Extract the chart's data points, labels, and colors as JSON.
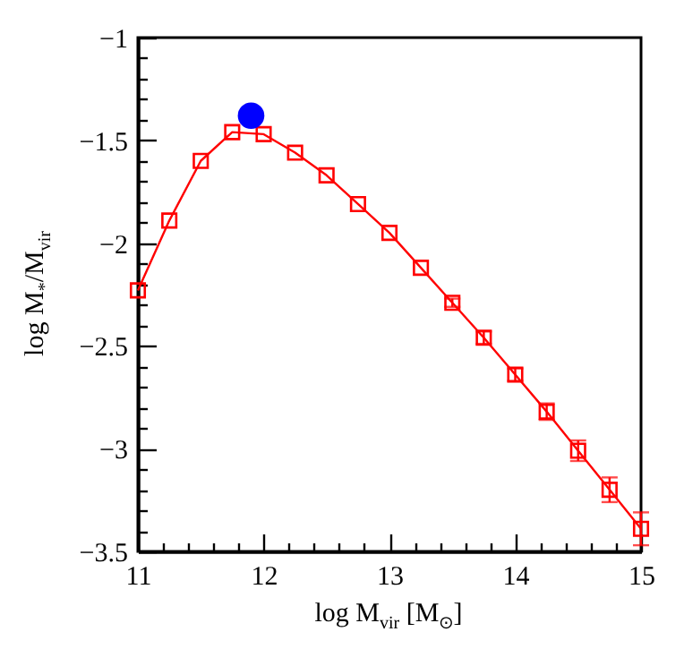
{
  "chart_data": {
    "type": "line",
    "xlabel": "log M$_{vir}$ [M$_{⊙}$]",
    "ylabel": "log M$_{*}$/M$_{vir}$",
    "series": [
      {
        "type": "line",
        "color": "#ff0000",
        "marker": "square",
        "x": [
          11,
          11.25,
          11.5,
          11.75,
          12,
          12.25,
          12.5,
          12.75,
          13,
          13.25,
          13.5,
          13.75,
          14,
          14.25,
          14.5,
          14.75,
          15
        ],
        "values": [
          -2.23,
          -1.89,
          -1.6,
          -1.46,
          -1.47,
          -1.56,
          -1.67,
          -1.81,
          -1.95,
          -2.12,
          -2.29,
          -2.46,
          -2.64,
          -2.82,
          -3.01,
          -3.2,
          -3.39
        ],
        "errors": [
          null,
          null,
          null,
          null,
          null,
          null,
          null,
          null,
          null,
          null,
          0.02,
          0.03,
          0.03,
          0.04,
          0.05,
          0.06,
          0.08
        ]
      },
      {
        "type": "scatter",
        "color": "#0000ff",
        "marker": "circle",
        "x": [
          11.9
        ],
        "values": [
          -1.38
        ]
      }
    ],
    "xlim": [
      11,
      15
    ],
    "ylim": [
      -3.5,
      -1
    ],
    "xticks": [
      11,
      {
        "value": 11.2,
        "label": null
      },
      {
        "value": 11.4,
        "label": null
      },
      {
        "value": 11.6,
        "label": null
      },
      {
        "value": 11.8,
        "label": null
      },
      12,
      {
        "value": 12.2,
        "label": null
      },
      {
        "value": 12.4,
        "label": null
      },
      {
        "value": 12.6,
        "label": null
      },
      {
        "value": 12.8,
        "label": null
      },
      13,
      {
        "value": 13.2,
        "label": null
      },
      {
        "value": 13.4,
        "label": null
      },
      {
        "value": 13.6,
        "label": null
      },
      {
        "value": 13.8,
        "label": null
      },
      14,
      {
        "value": 14.2,
        "label": null
      },
      {
        "value": 14.4,
        "label": null
      },
      {
        "value": 14.6,
        "label": null
      },
      {
        "value": 14.8,
        "label": null
      },
      15
    ],
    "yticks": [
      -3.5,
      {
        "value": -3.4,
        "label": null
      },
      {
        "value": -3.3,
        "label": null
      },
      {
        "value": -3.2,
        "label": null
      },
      {
        "value": -3.1,
        "label": null
      },
      -3,
      {
        "value": -2.9,
        "label": null
      },
      {
        "value": -2.8,
        "label": null
      },
      {
        "value": -2.7,
        "label": null
      },
      {
        "value": -2.6,
        "label": null
      },
      -2.5,
      {
        "value": -2.4,
        "label": null
      },
      {
        "value": -2.3,
        "label": null
      },
      {
        "value": -2.2,
        "label": null
      },
      {
        "value": -2.1,
        "label": null
      },
      -2,
      {
        "value": -1.9,
        "label": null
      },
      {
        "value": -1.8,
        "label": null
      },
      {
        "value": -1.7,
        "label": null
      },
      {
        "value": -1.6,
        "label": null
      },
      -1.5,
      {
        "value": -1.4,
        "label": null
      },
      {
        "value": -1.3,
        "label": null
      },
      {
        "value": -1.2,
        "label": null
      },
      {
        "value": -1.1,
        "label": null
      },
      -1
    ]
  }
}
